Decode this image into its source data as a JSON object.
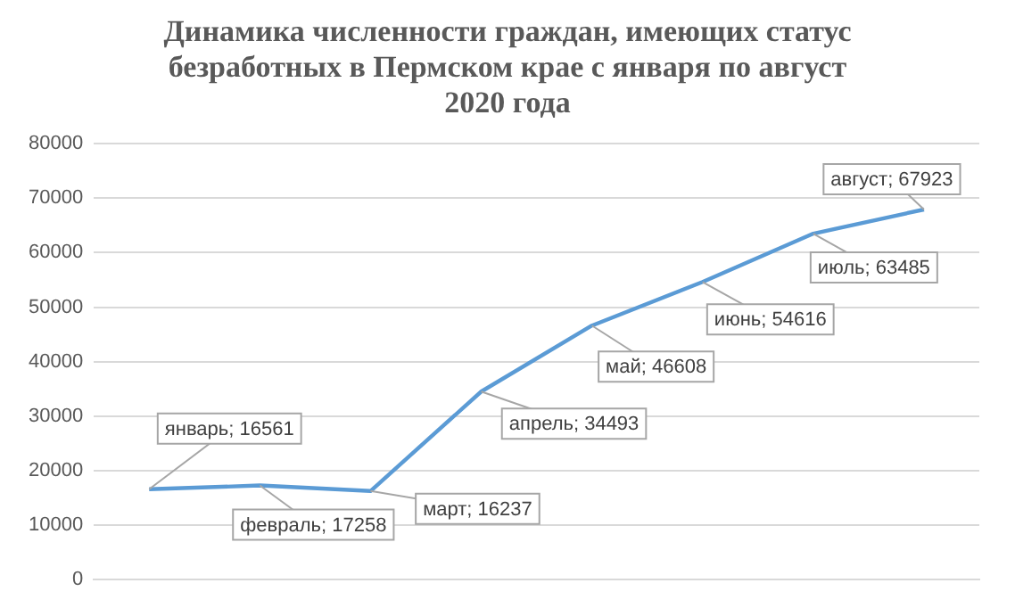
{
  "chart_data": {
    "type": "line",
    "title": "Динамика численности граждан, имеющих статус безработных в Пермском крае с января по август 2020 года",
    "categories": [
      null,
      null,
      null,
      null,
      null,
      null,
      null,
      null
    ],
    "series": [
      {
        "color": "#5b9bd5",
        "values": [
          16561,
          17258,
          16237,
          34493,
          46608,
          54616,
          63485,
          67923
        ],
        "value_labels": [
          "январь; 16561",
          "февраль; 17258",
          "март; 16237",
          "апрель; 34493",
          "май; 46608",
          "июнь; 54616",
          "июль; 63485",
          "август; 67923"
        ]
      }
    ],
    "ylim": [
      0,
      80000
    ],
    "yticks": [
      0,
      10000,
      20000,
      30000,
      40000,
      50000,
      60000,
      70000,
      80000
    ],
    "grid": "y",
    "legend": false,
    "marker": "none",
    "line_style": "solid",
    "tick_labels": "y"
  }
}
